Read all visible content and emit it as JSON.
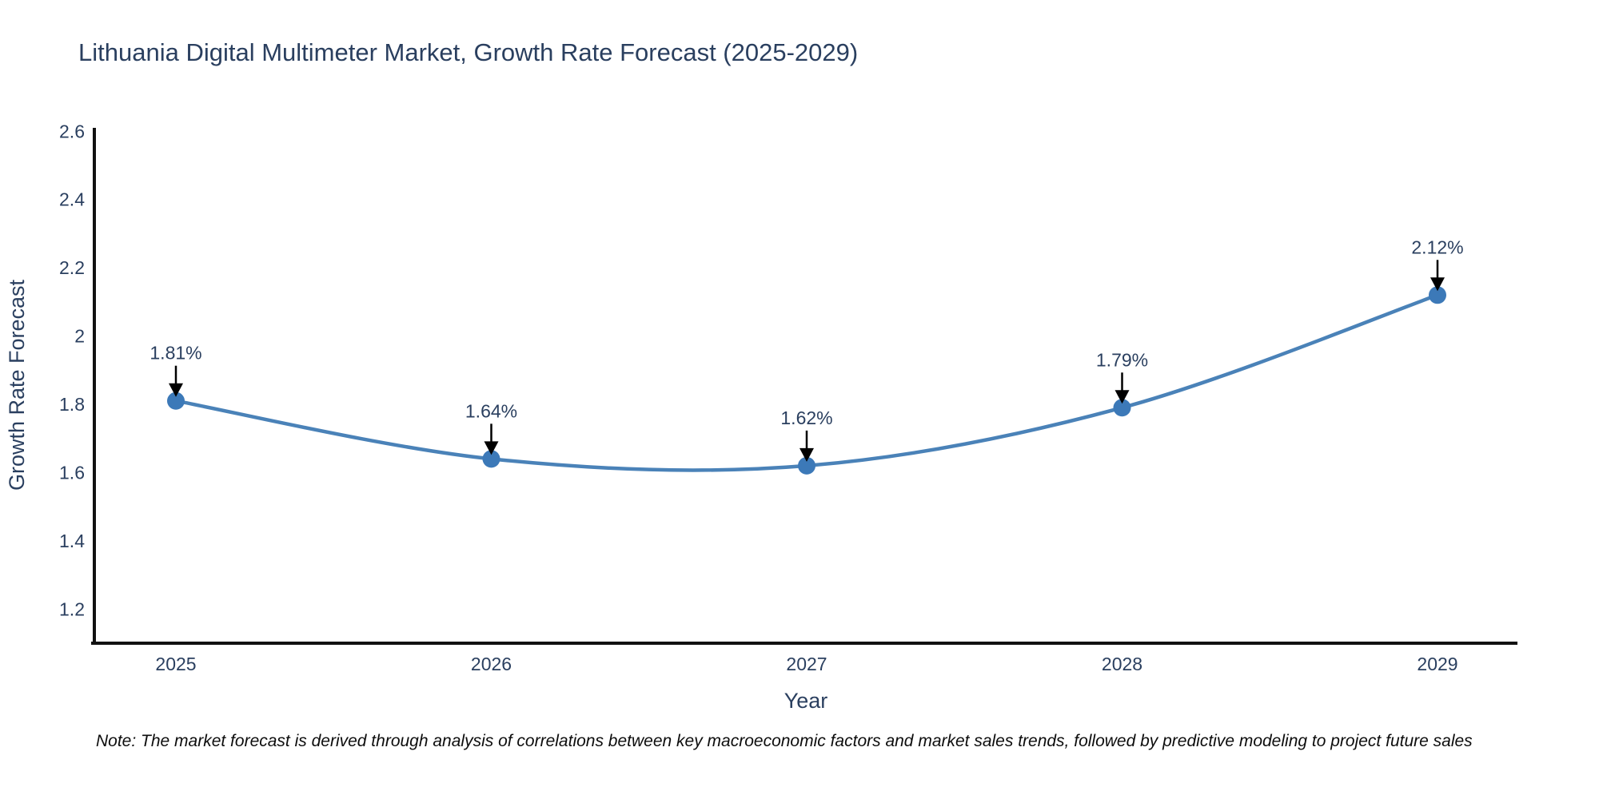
{
  "page": {
    "background": "#ffffff"
  },
  "note": "Note: The market forecast is derived through analysis of correlations between key macroeconomic factors and market sales trends, followed by predictive modeling to project future sales",
  "chart_data": {
    "type": "line",
    "title": "Lithuania Digital Multimeter Market, Growth Rate Forecast (2025-2029)",
    "xlabel": "Year",
    "ylabel": "Growth Rate Forecast",
    "x": [
      2025,
      2026,
      2027,
      2028,
      2029
    ],
    "values": [
      1.81,
      1.64,
      1.62,
      1.79,
      2.12
    ],
    "point_labels": [
      "1.81%",
      "1.64%",
      "1.62%",
      "1.79%",
      "2.12%"
    ],
    "yticks": [
      1.2,
      1.4,
      1.6,
      1.8,
      2,
      2.2,
      2.4,
      2.6
    ],
    "ylim": [
      1.1,
      2.61
    ],
    "grid": false,
    "legend": "none",
    "curve": "spline",
    "line_color": "#4a82b8",
    "marker_color": "#3c79b8",
    "axis_color": "#111111",
    "label_color": "#2a3f5f",
    "annotation_arrow_color": "#000000"
  }
}
